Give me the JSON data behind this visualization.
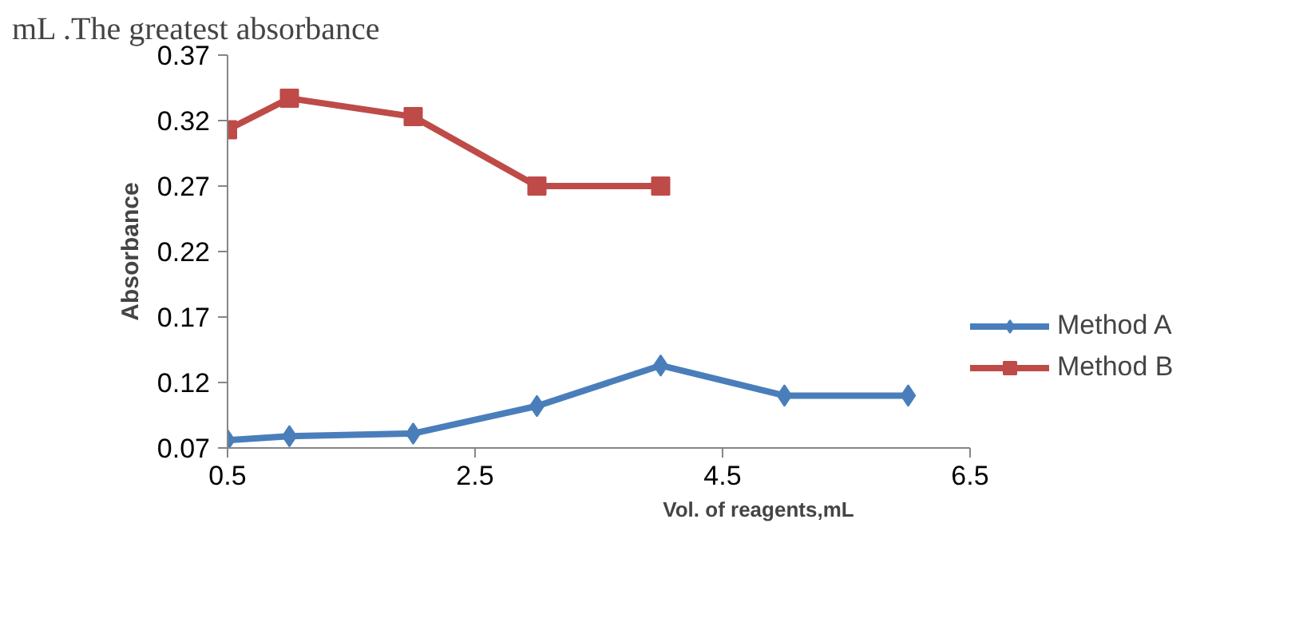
{
  "chart_data": {
    "type": "line",
    "annotations": [
      "mL .The greatest absorbance"
    ],
    "xlabel": "Vol. of reagents,mL",
    "ylabel": "Absorbance",
    "xlim": [
      0.5,
      6.5
    ],
    "xticks": [
      0.5,
      2.5,
      4.5,
      6.5
    ],
    "ylim": [
      0.07,
      0.37
    ],
    "yticks": [
      0.07,
      0.12,
      0.17,
      0.22,
      0.27,
      0.32,
      0.37
    ],
    "grid": false,
    "legend": "right",
    "line_style": "solid",
    "series": [
      {
        "name": "Method A",
        "color": "#4a7ebb",
        "marker": "diamond",
        "x": [
          0.5,
          1,
          2,
          3,
          4,
          5,
          6
        ],
        "values": [
          0.076,
          0.079,
          0.081,
          0.102,
          0.133,
          0.11,
          0.11
        ]
      },
      {
        "name": "Method B",
        "color": "#be4b48",
        "marker": "square",
        "x": [
          0.5,
          1,
          2,
          3,
          4
        ],
        "values": [
          0.313,
          0.337,
          0.323,
          0.27,
          0.27
        ]
      }
    ]
  }
}
